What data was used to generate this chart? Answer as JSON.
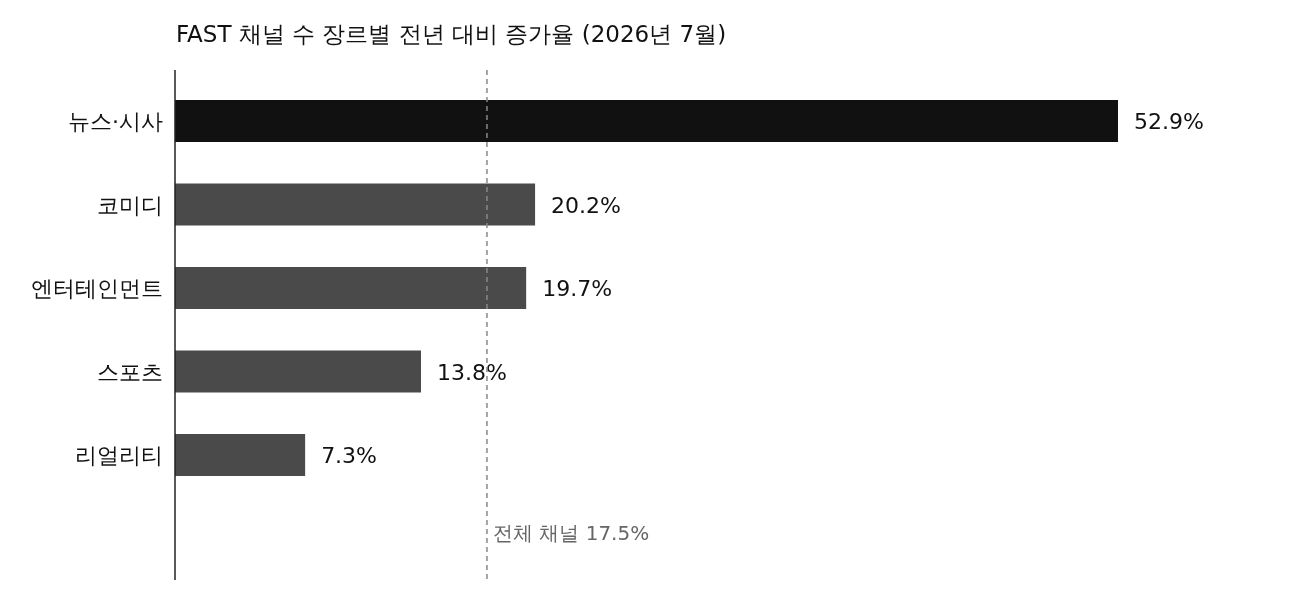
{
  "chart_data": {
    "type": "bar",
    "orientation": "horizontal",
    "title": "FAST 채널 수 장르별 전년 대비 증가율 (2026년 7월)",
    "categories": [
      "뉴스·시사",
      "코미디",
      "엔터테인먼트",
      "스포츠",
      "리얼리티"
    ],
    "values": [
      52.9,
      20.2,
      19.7,
      13.8,
      7.3
    ],
    "value_labels": [
      "52.9%",
      "20.2%",
      "19.7%",
      "13.8%",
      "7.3%"
    ],
    "colors": [
      "#111111",
      "#4a4a4a",
      "#4a4a4a",
      "#4a4a4a",
      "#4a4a4a"
    ],
    "ref_lines": [
      {
        "axis": "x",
        "value": 17.5,
        "label": "전체 채널 17.5%",
        "color": "#888888",
        "line_style": "dashed"
      }
    ]
  }
}
